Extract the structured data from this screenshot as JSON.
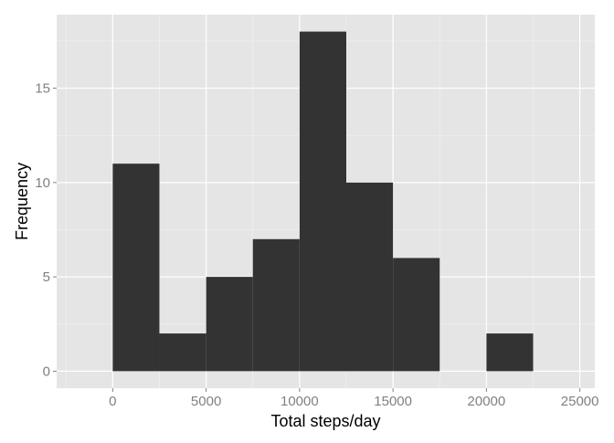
{
  "chart_data": {
    "type": "bar",
    "subtype": "histogram",
    "xlabel": "Total steps/day",
    "ylabel": "Frequency",
    "xlim": [
      -3000,
      25800
    ],
    "ylim": [
      -0.9,
      18.9
    ],
    "x_ticks": [
      0,
      5000,
      10000,
      15000,
      20000,
      25000
    ],
    "y_ticks": [
      0,
      5,
      10,
      15
    ],
    "bin_width": 2500,
    "bins": [
      {
        "start": 0,
        "end": 2500,
        "count": 11
      },
      {
        "start": 2500,
        "end": 5000,
        "count": 2
      },
      {
        "start": 5000,
        "end": 7500,
        "count": 5
      },
      {
        "start": 7500,
        "end": 10000,
        "count": 7
      },
      {
        "start": 10000,
        "end": 12500,
        "count": 18
      },
      {
        "start": 12500,
        "end": 15000,
        "count": 10
      },
      {
        "start": 15000,
        "end": 17500,
        "count": 6
      },
      {
        "start": 17500,
        "end": 20000,
        "count": 0
      },
      {
        "start": 20000,
        "end": 22500,
        "count": 2
      }
    ],
    "grid": true,
    "colors": {
      "panel_background": "#E5E5E5",
      "grid_major": "#FFFFFF",
      "grid_minor": "#F2F2F2",
      "bar_fill": "#333333",
      "tick_label": "#808080",
      "axis_title": "#000000"
    }
  }
}
